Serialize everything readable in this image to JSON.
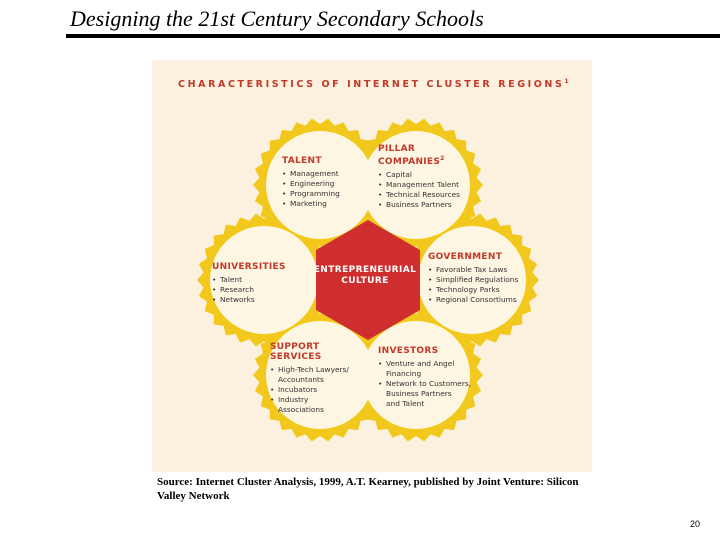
{
  "slide": {
    "title": "Designing the 21st Century Secondary Schools",
    "page_number": "20"
  },
  "diagram": {
    "heading": "CHARACTERISTICS OF INTERNET CLUSTER REGIONS",
    "heading_note": "1",
    "center": "ENTREPRENEURIAL\nCULTURE",
    "colors": {
      "background": "#fbf1de",
      "gear": "#f2c81c",
      "petal_fill": "#fdf6e2",
      "center": "#cf2e2e",
      "text_red": "#c0392b"
    },
    "petals": [
      {
        "title": "TALENT",
        "note": "",
        "items": [
          "Management",
          "Engineering",
          "Programming",
          "Marketing"
        ]
      },
      {
        "title": "PILLAR\nCOMPANIES",
        "note": "2",
        "items": [
          "Capital",
          "Management Talent",
          "Technical Resources",
          "Business Partners"
        ]
      },
      {
        "title": "GOVERNMENT",
        "note": "",
        "items": [
          "Favorable Tax Laws",
          "Simplified Regulations",
          "Technology Parks",
          "Regional Consortiums"
        ]
      },
      {
        "title": "INVESTORS",
        "note": "",
        "items": [
          "Venture and Angel\nFinancing",
          "Network to Customers,\nBusiness Partners\nand Talent"
        ]
      },
      {
        "title": "SUPPORT\nSERVICES",
        "note": "",
        "items": [
          "High-Tech Lawyers/\nAccountants",
          "Incubators",
          "Industry\nAssociations"
        ]
      },
      {
        "title": "UNIVERSITIES",
        "note": "",
        "items": [
          "Talent",
          "Research",
          "Networks"
        ]
      }
    ]
  },
  "source": "Source: Internet Cluster Analysis, 1999, A.T. Kearney, published by Joint Venture: Silicon Valley Network"
}
